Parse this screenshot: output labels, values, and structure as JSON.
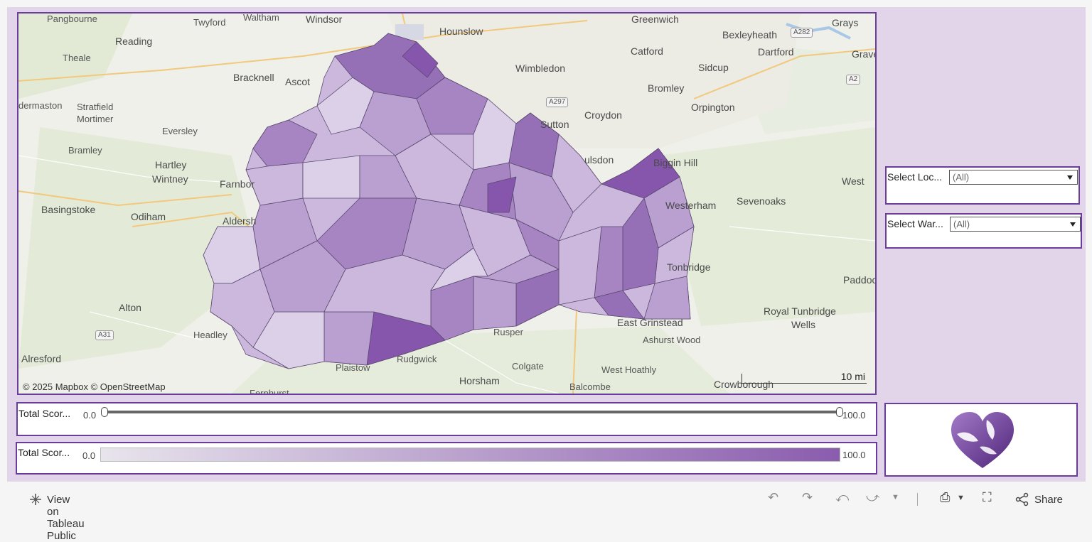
{
  "map": {
    "places": [
      {
        "name": "Pangbourne"
      },
      {
        "name": "Twyford"
      },
      {
        "name": "Waltham"
      },
      {
        "name": "Windsor"
      },
      {
        "name": "Hounslow"
      },
      {
        "name": "Greenwich"
      },
      {
        "name": "Bexleyheath"
      },
      {
        "name": "Grays"
      },
      {
        "name": "Reading"
      },
      {
        "name": "Theale"
      },
      {
        "name": "Bracknell"
      },
      {
        "name": "Ascot"
      },
      {
        "name": "Catford"
      },
      {
        "name": "Dartford"
      },
      {
        "name": "Gravese"
      },
      {
        "name": "Wimbledon"
      },
      {
        "name": "Sidcup"
      },
      {
        "name": "Bromley"
      },
      {
        "name": "dermaston"
      },
      {
        "name": "Stratfield"
      },
      {
        "name": "Mortimer"
      },
      {
        "name": "Croydon"
      },
      {
        "name": "Orpington"
      },
      {
        "name": "Sutton"
      },
      {
        "name": "Eversley"
      },
      {
        "name": "Bramley"
      },
      {
        "name": "ulsdon"
      },
      {
        "name": "Hartley"
      },
      {
        "name": "Wintney"
      },
      {
        "name": "Biggin Hill"
      },
      {
        "name": "Farnbor"
      },
      {
        "name": "West"
      },
      {
        "name": "Basingstoke"
      },
      {
        "name": "Odiham"
      },
      {
        "name": "Westerham"
      },
      {
        "name": "Sevenoaks"
      },
      {
        "name": "Aldersh"
      },
      {
        "name": "Tonbridge"
      },
      {
        "name": "Paddock"
      },
      {
        "name": "Alton"
      },
      {
        "name": "Royal Tunbridge"
      },
      {
        "name": "Wells"
      },
      {
        "name": "Headley"
      },
      {
        "name": "Rusper"
      },
      {
        "name": "East Grinstead"
      },
      {
        "name": "Ashurst Wood"
      },
      {
        "name": "Alresford"
      },
      {
        "name": "Rudgwick"
      },
      {
        "name": "Plaistow"
      },
      {
        "name": "Colgate"
      },
      {
        "name": "West Hoathly"
      },
      {
        "name": "Horsham"
      },
      {
        "name": "Balcombe"
      },
      {
        "name": "Crowborough"
      },
      {
        "name": "Fernhurst"
      }
    ],
    "roads": [
      "A282",
      "A2",
      "A297",
      "A31"
    ],
    "attribution": "© 2025 Mapbox  © OpenStreetMap",
    "scale_label": "10 mi",
    "choropleth_colors": [
      "#ece6f2",
      "#dcd0e8",
      "#cbb8dc",
      "#b9a0d0",
      "#a785c2",
      "#9670b7",
      "#8556ab"
    ]
  },
  "filters": {
    "location": {
      "label": "Select Loc...",
      "value": "(All)"
    },
    "ward": {
      "label": "Select War...",
      "value": "(All)"
    }
  },
  "score_slider": {
    "label": "Total Scor...",
    "min": "0.0",
    "max": "100.0",
    "range_low_fraction": 0.0,
    "range_high_fraction": 1.0
  },
  "score_legend": {
    "label": "Total Scor...",
    "min": "0.0",
    "max": "100.0",
    "color_start": "#e8e4ec",
    "color_end": "#8a5cae"
  },
  "footer": {
    "view_label": "View on Tableau Public",
    "share_label": "Share"
  },
  "colors": {
    "accent": "#6a3d9a",
    "dashboard_bg": "#e2d5ea",
    "logo": "#6f3a9e"
  }
}
